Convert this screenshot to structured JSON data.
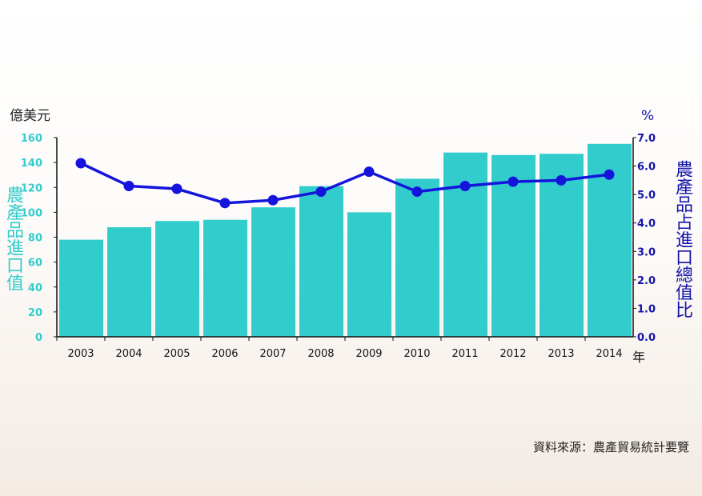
{
  "chart_data": {
    "type": "bar+line",
    "categories": [
      "2003",
      "2004",
      "2005",
      "2006",
      "2007",
      "2008",
      "2009",
      "2010",
      "2011",
      "2012",
      "2013",
      "2014"
    ],
    "series": [
      {
        "axis": "left",
        "type": "bar",
        "color": "#33cccc",
        "values": [
          78,
          88,
          93,
          94,
          104,
          121,
          100,
          127,
          148,
          146,
          147,
          155
        ]
      },
      {
        "axis": "right",
        "type": "line",
        "color": "#1414dc",
        "values": [
          6.1,
          5.3,
          5.2,
          4.7,
          4.8,
          5.1,
          5.8,
          5.1,
          5.3,
          5.45,
          5.5,
          5.7
        ]
      }
    ],
    "left_axis": {
      "unit": "億美元",
      "label": "農產品進口值",
      "ylim": [
        0,
        160
      ],
      "ticks": [
        "0",
        "20",
        "40",
        "60",
        "80",
        "100",
        "120",
        "140",
        "160"
      ],
      "color": "#33cccc"
    },
    "right_axis": {
      "unit": "%",
      "label": "農產品占進口總值比",
      "ylim": [
        0,
        7
      ],
      "ticks": [
        "0.0",
        "1.0",
        "2.0",
        "3.0",
        "4.0",
        "5.0",
        "6.0",
        "7.0"
      ],
      "color": "#1414aa"
    },
    "x_unit": "年",
    "source": "資料來源：農產貿易統計要覽"
  }
}
